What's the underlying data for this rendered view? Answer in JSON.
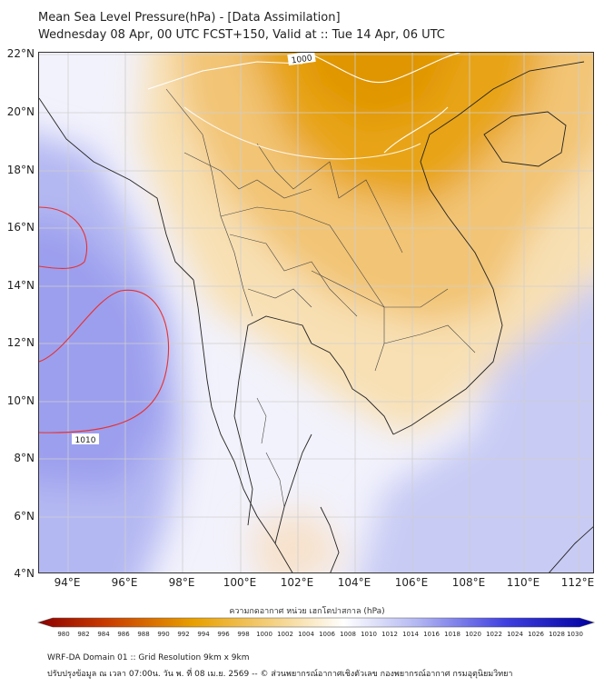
{
  "header": {
    "title": "Mean Sea Level Pressure(hPa) - [Data Assimilation]",
    "subtitle": "Wednesday 08 Apr, 00 UTC FCST+150, Valid at :: Tue 14 Apr, 06 UTC"
  },
  "map": {
    "lon_ticks": [
      "94°E",
      "96°E",
      "98°E",
      "100°E",
      "102°E",
      "104°E",
      "106°E",
      "108°E",
      "110°E",
      "112°E"
    ],
    "lat_ticks": [
      "22°N",
      "20°N",
      "18°N",
      "16°N",
      "14°N",
      "12°N",
      "10°N",
      "8°N",
      "6°N",
      "4°N"
    ],
    "contour_labels": [
      "1000",
      "1010"
    ],
    "colors": {
      "low": "#e8a000",
      "mid": "#ffffff",
      "high": "#8c8cf0",
      "contour_high": "#e83030",
      "contour_low": "#ffffff"
    }
  },
  "colorbar": {
    "title": "ความกดอากาศ หน่วย เฮกโตปาสกาล (hPa)",
    "ticks": [
      "980",
      "982",
      "984",
      "986",
      "988",
      "990",
      "992",
      "994",
      "996",
      "998",
      "1000",
      "1002",
      "1004",
      "1006",
      "1008",
      "1010",
      "1012",
      "1014",
      "1016",
      "1018",
      "1020",
      "1022",
      "1024",
      "1026",
      "1028",
      "1030"
    ]
  },
  "footer": {
    "line1": "WRF-DA Domain 01 :: Grid Resolution 9km x 9km",
    "line2": "ปรับปรุงข้อมูล ณ เวลา 07:00น. วัน พ. ที่ 08 เม.ย. 2569 -- © ส่วนพยากรณ์อากาศเชิงตัวเลข กองพยากรณ์อากาศ กรมอุตุนิยมวิทยา"
  }
}
